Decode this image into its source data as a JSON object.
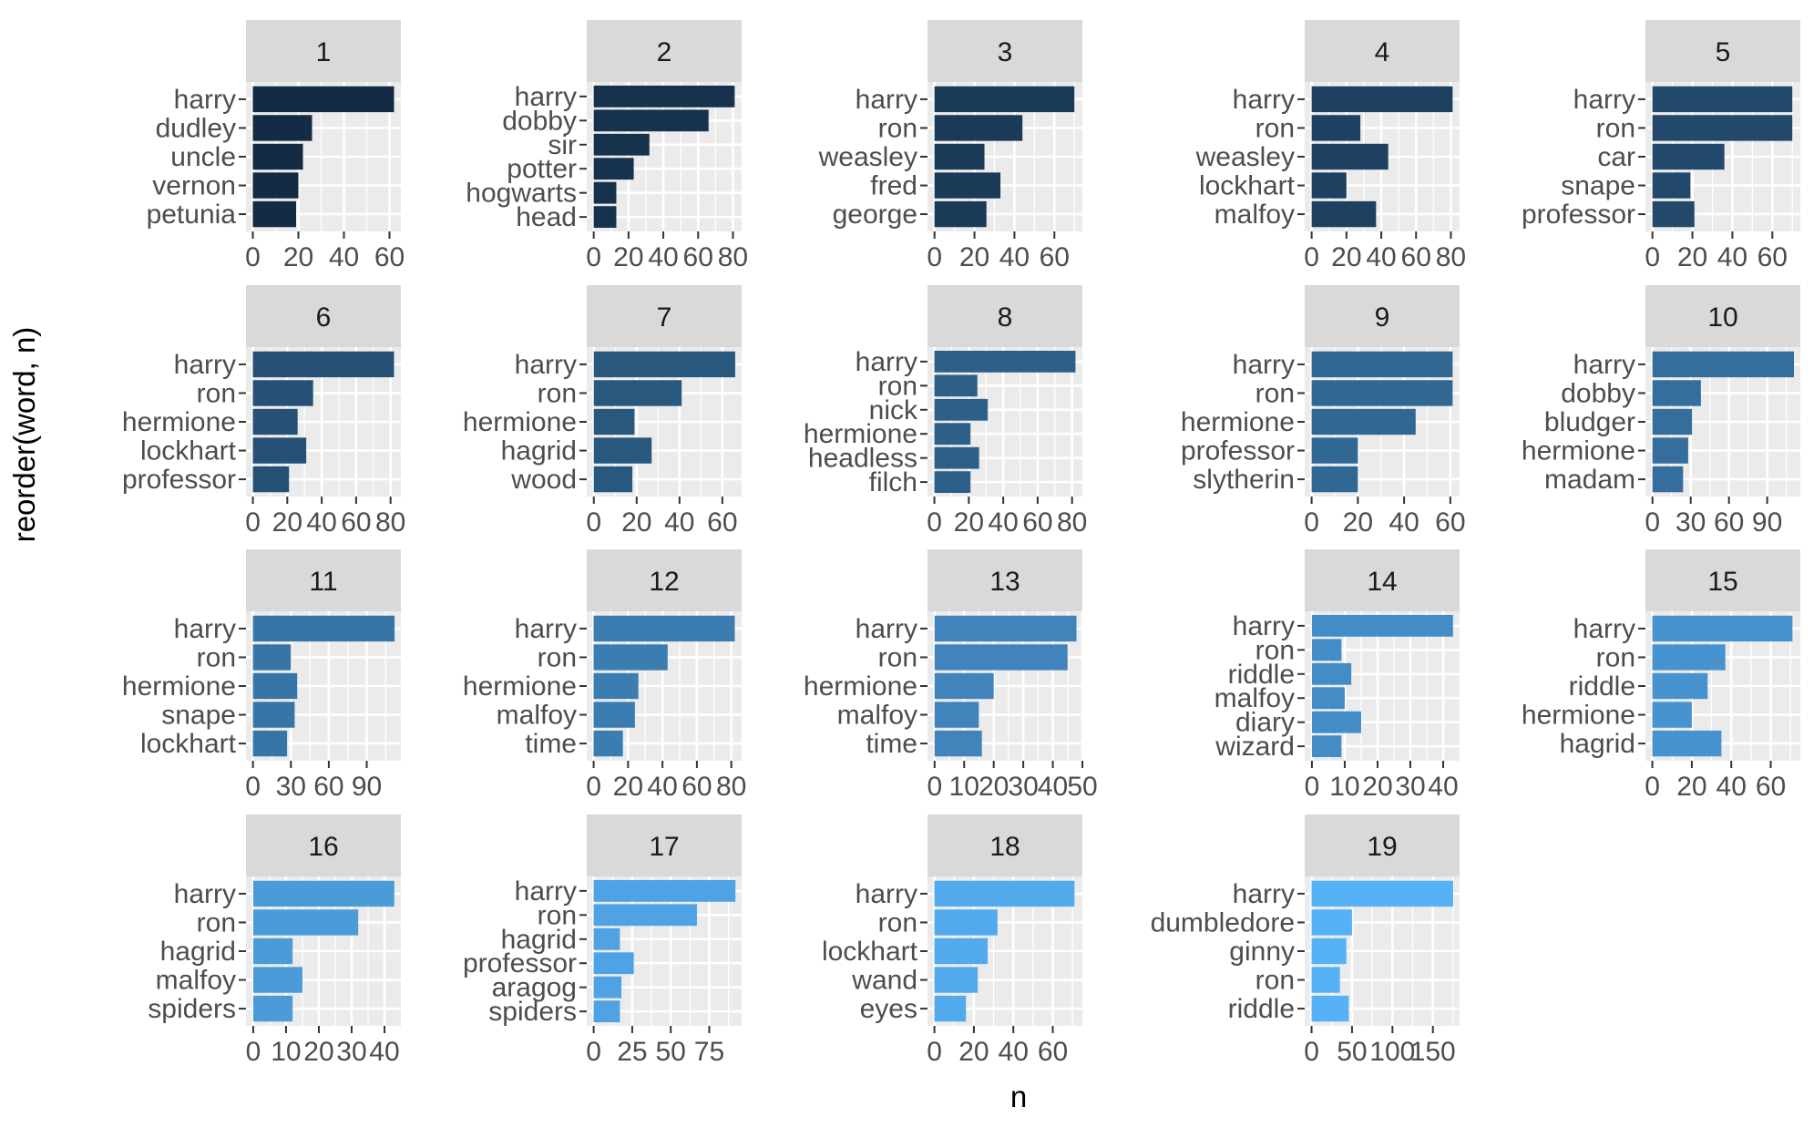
{
  "chart_data": {
    "type": "bar",
    "orientation": "horizontal",
    "xlabel": "n",
    "ylabel": "reorder(word, n)",
    "grid": true,
    "legend": "none",
    "colors": {
      "panel_bg": "#ebebeb",
      "strip_bg": "#d9d9d9",
      "grid": "#ffffff",
      "text": "#4d4d4d",
      "axis_title": "#000000",
      "gradient_start": "#132b43",
      "gradient_end": "#56b1f7"
    },
    "facets": [
      {
        "label": "1",
        "words": [
          "harry",
          "dudley",
          "uncle",
          "vernon",
          "petunia"
        ],
        "values": [
          62,
          26,
          22,
          20,
          19
        ],
        "xlim": [
          -3,
          65
        ],
        "ticks": [
          0,
          20,
          40,
          60
        ],
        "tick_labels": [
          "0",
          "20",
          "40",
          "60"
        ]
      },
      {
        "label": "2",
        "words": [
          "harry",
          "dobby",
          "sir",
          "potter",
          "hogwarts",
          "head"
        ],
        "values": [
          81,
          66,
          32,
          23,
          13,
          13
        ],
        "xlim": [
          -4,
          85
        ],
        "ticks": [
          0,
          20,
          40,
          60,
          80
        ],
        "tick_labels": [
          "0",
          "20",
          "40",
          "60",
          "80"
        ]
      },
      {
        "label": "3",
        "words": [
          "harry",
          "ron",
          "weasley",
          "fred",
          "george"
        ],
        "values": [
          70,
          44,
          25,
          33,
          26
        ],
        "xlim": [
          -3.5,
          74
        ],
        "ticks": [
          0,
          20,
          40,
          60
        ],
        "tick_labels": [
          "0",
          "20",
          "40",
          "60"
        ]
      },
      {
        "label": "4",
        "words": [
          "harry",
          "ron",
          "weasley",
          "lockhart",
          "malfoy"
        ],
        "values": [
          81,
          28,
          44,
          20,
          37
        ],
        "xlim": [
          -4,
          85
        ],
        "ticks": [
          0,
          20,
          40,
          60,
          80
        ],
        "tick_labels": [
          "0",
          "20",
          "40",
          "60",
          "80"
        ]
      },
      {
        "label": "5",
        "words": [
          "harry",
          "ron",
          "car",
          "snape",
          "professor"
        ],
        "values": [
          70,
          70,
          36,
          19,
          21
        ],
        "xlim": [
          -3.5,
          74
        ],
        "ticks": [
          0,
          20,
          40,
          60
        ],
        "tick_labels": [
          "0",
          "20",
          "40",
          "60"
        ]
      },
      {
        "label": "6",
        "words": [
          "harry",
          "ron",
          "hermione",
          "lockhart",
          "professor"
        ],
        "values": [
          82,
          35,
          26,
          31,
          21
        ],
        "xlim": [
          -4,
          86
        ],
        "ticks": [
          0,
          20,
          40,
          60,
          80
        ],
        "tick_labels": [
          "0",
          "20",
          "40",
          "60",
          "80"
        ]
      },
      {
        "label": "7",
        "words": [
          "harry",
          "ron",
          "hermione",
          "hagrid",
          "wood"
        ],
        "values": [
          66,
          41,
          19,
          27,
          18
        ],
        "xlim": [
          -3.3,
          69
        ],
        "ticks": [
          0,
          20,
          40,
          60
        ],
        "tick_labels": [
          "0",
          "20",
          "40",
          "60"
        ]
      },
      {
        "label": "8",
        "words": [
          "harry",
          "ron",
          "nick",
          "hermione",
          "headless",
          "filch"
        ],
        "values": [
          82,
          25,
          31,
          21,
          26,
          21
        ],
        "xlim": [
          -4,
          86
        ],
        "ticks": [
          0,
          20,
          40,
          60,
          80
        ],
        "tick_labels": [
          "0",
          "20",
          "40",
          "60",
          "80"
        ]
      },
      {
        "label": "9",
        "words": [
          "harry",
          "ron",
          "hermione",
          "professor",
          "slytherin"
        ],
        "values": [
          61,
          61,
          45,
          20,
          20
        ],
        "xlim": [
          -3,
          64
        ],
        "ticks": [
          0,
          20,
          40,
          60
        ],
        "tick_labels": [
          "0",
          "20",
          "40",
          "60"
        ]
      },
      {
        "label": "10",
        "words": [
          "harry",
          "dobby",
          "bludger",
          "hermione",
          "madam"
        ],
        "values": [
          111,
          38,
          31,
          28,
          24
        ],
        "xlim": [
          -5.5,
          116
        ],
        "ticks": [
          0,
          30,
          60,
          90
        ],
        "tick_labels": [
          "0",
          "30",
          "60",
          "90"
        ]
      },
      {
        "label": "11",
        "words": [
          "harry",
          "ron",
          "hermione",
          "snape",
          "lockhart"
        ],
        "values": [
          112,
          30,
          35,
          33,
          27
        ],
        "xlim": [
          -5.5,
          117
        ],
        "ticks": [
          0,
          30,
          60,
          90
        ],
        "tick_labels": [
          "0",
          "30",
          "60",
          "90"
        ]
      },
      {
        "label": "12",
        "words": [
          "harry",
          "ron",
          "hermione",
          "malfoy",
          "time"
        ],
        "values": [
          82,
          43,
          26,
          24,
          17
        ],
        "xlim": [
          -4,
          86
        ],
        "ticks": [
          0,
          20,
          40,
          60,
          80
        ],
        "tick_labels": [
          "0",
          "20",
          "40",
          "60",
          "80"
        ]
      },
      {
        "label": "13",
        "words": [
          "harry",
          "ron",
          "hermione",
          "malfoy",
          "time"
        ],
        "values": [
          48,
          45,
          20,
          15,
          16
        ],
        "xlim": [
          -2.4,
          50
        ],
        "ticks": [
          0,
          10,
          20,
          30,
          40,
          50
        ],
        "tick_labels": [
          "0",
          "10",
          "20",
          "30",
          "40",
          "50"
        ]
      },
      {
        "label": "14",
        "words": [
          "harry",
          "ron",
          "riddle",
          "malfoy",
          "diary",
          "wizard"
        ],
        "values": [
          43,
          9,
          12,
          10,
          15,
          9
        ],
        "xlim": [
          -2.2,
          45
        ],
        "ticks": [
          0,
          10,
          20,
          30,
          40
        ],
        "tick_labels": [
          "0",
          "10",
          "20",
          "30",
          "40"
        ]
      },
      {
        "label": "15",
        "words": [
          "harry",
          "ron",
          "riddle",
          "hermione",
          "hagrid"
        ],
        "values": [
          71,
          37,
          28,
          20,
          35
        ],
        "xlim": [
          -3.5,
          75
        ],
        "ticks": [
          0,
          20,
          40,
          60
        ],
        "tick_labels": [
          "0",
          "20",
          "40",
          "60"
        ]
      },
      {
        "label": "16",
        "words": [
          "harry",
          "ron",
          "hagrid",
          "malfoy",
          "spiders"
        ],
        "values": [
          43,
          32,
          12,
          15,
          12
        ],
        "xlim": [
          -2.2,
          45
        ],
        "ticks": [
          0,
          10,
          20,
          30,
          40
        ],
        "tick_labels": [
          "0",
          "10",
          "20",
          "30",
          "40"
        ]
      },
      {
        "label": "17",
        "words": [
          "harry",
          "ron",
          "hagrid",
          "professor",
          "aragog",
          "spiders"
        ],
        "values": [
          92,
          67,
          17,
          26,
          18,
          17
        ],
        "xlim": [
          -4.5,
          96
        ],
        "ticks": [
          0,
          25,
          50,
          75
        ],
        "tick_labels": [
          "0",
          "25",
          "50",
          "75"
        ]
      },
      {
        "label": "18",
        "words": [
          "harry",
          "ron",
          "lockhart",
          "wand",
          "eyes"
        ],
        "values": [
          71,
          32,
          27,
          22,
          16
        ],
        "xlim": [
          -3.5,
          75
        ],
        "ticks": [
          0,
          20,
          40,
          60
        ],
        "tick_labels": [
          "0",
          "20",
          "40",
          "60"
        ]
      },
      {
        "label": "19",
        "words": [
          "harry",
          "dumbledore",
          "ginny",
          "ron",
          "riddle"
        ],
        "values": [
          175,
          50,
          43,
          35,
          46
        ],
        "xlim": [
          -8.5,
          183
        ],
        "ticks": [
          0,
          50,
          100,
          150
        ],
        "tick_labels": [
          "0",
          "50",
          "100",
          "150"
        ]
      }
    ]
  }
}
